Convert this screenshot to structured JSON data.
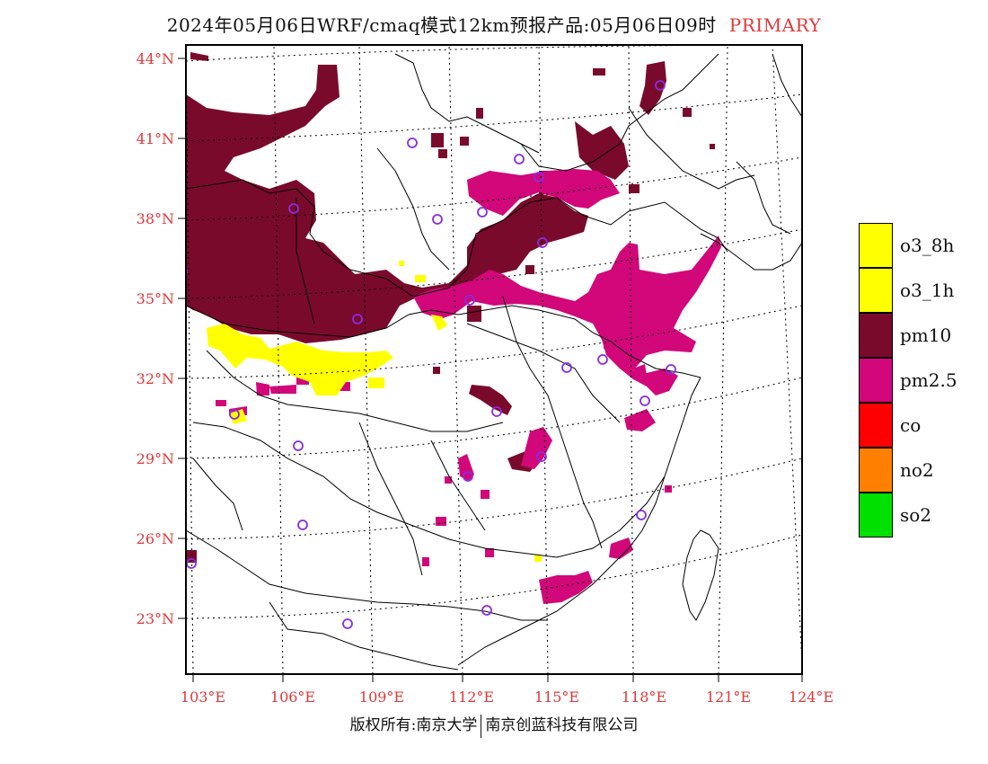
{
  "header": {
    "title": "2024年05月06日WRF/cmaq模式12km预报产品:05月06日09时",
    "product": "PRIMARY"
  },
  "map": {
    "lat_labels": [
      "44°N",
      "41°N",
      "38°N",
      "35°N",
      "32°N",
      "29°N",
      "26°N",
      "23°N"
    ],
    "lon_labels": [
      "103°E",
      "106°E",
      "109°E",
      "112°E",
      "115°E",
      "118°E",
      "121°E",
      "124°E"
    ],
    "label_color": "#e0383a",
    "station_marker_color": "#8a2be2"
  },
  "legend": {
    "items": [
      {
        "label": "o3_8h",
        "color": "#ffff00"
      },
      {
        "label": "o3_1h",
        "color": "#ffff00"
      },
      {
        "label": "pm10",
        "color": "#7a0a2c"
      },
      {
        "label": "pm2.5",
        "color": "#d1077a"
      },
      {
        "label": "co",
        "color": "#ff0000"
      },
      {
        "label": "no2",
        "color": "#ff8000"
      },
      {
        "label": "so2",
        "color": "#00e000"
      }
    ]
  },
  "footer": {
    "left": "版权所有:南京大学",
    "right": "南京创蓝科技有限公司"
  }
}
